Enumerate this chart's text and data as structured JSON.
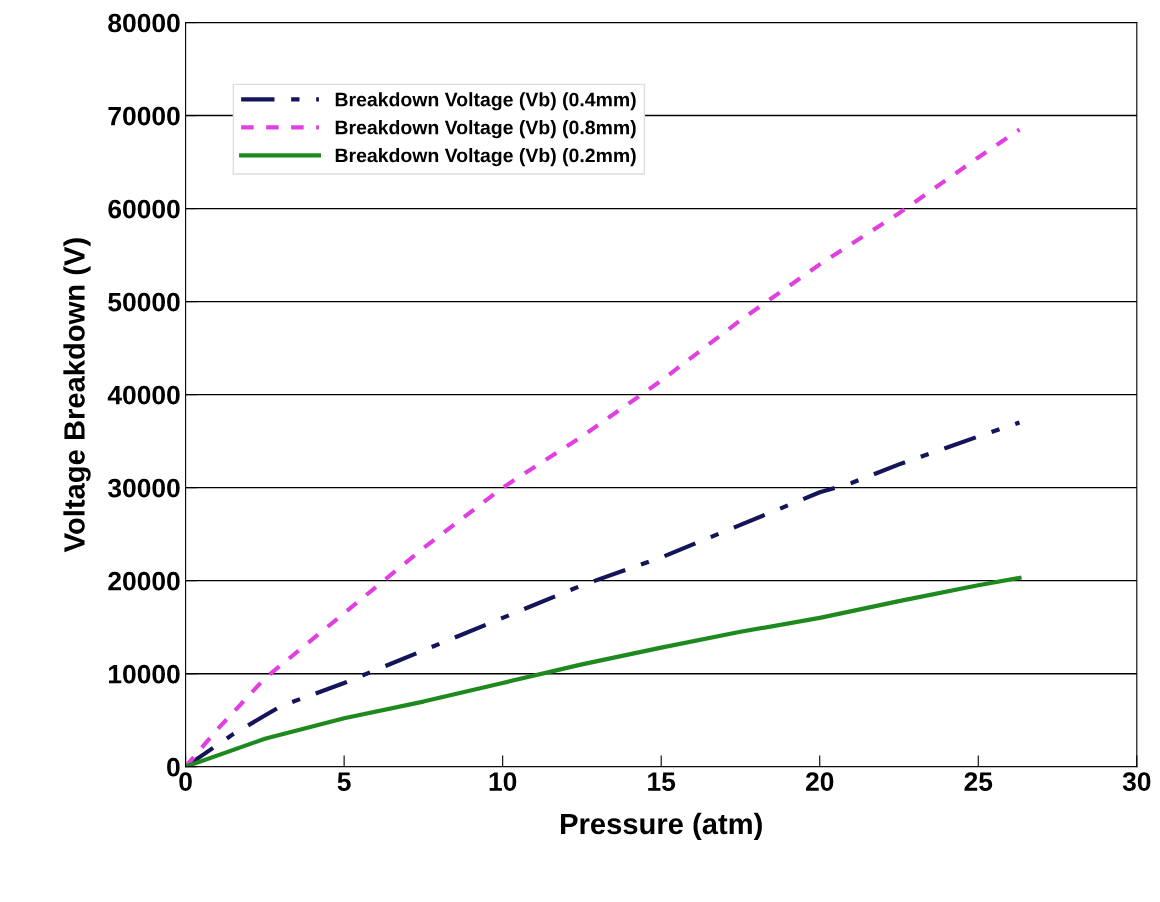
{
  "chart_data": {
    "type": "line",
    "xlabel": "Pressure (atm)",
    "ylabel": "Voltage Breakdown (V)",
    "xlim": [
      0,
      30
    ],
    "xticks": [
      0,
      5,
      10,
      15,
      20,
      25,
      30
    ],
    "ylim": [
      0,
      80000
    ],
    "yticks": [
      0,
      10000,
      20000,
      30000,
      40000,
      50000,
      60000,
      70000,
      80000
    ],
    "grid": "y",
    "legend": "top left",
    "marker": "none",
    "series": [
      {
        "name": "Breakdown Voltage (Vb) (0.4mm)",
        "color": "#14145a",
        "line_style": "dashdot",
        "x": [
          0,
          1.5,
          3,
          5,
          7.5,
          10,
          12.5,
          15,
          17.5,
          20,
          21,
          22.5,
          25,
          26.3
        ],
        "values": [
          0,
          3500,
          6500,
          9000,
          12500,
          16000,
          19500,
          22500,
          26000,
          29500,
          30500,
          32500,
          35500,
          37000
        ]
      },
      {
        "name": "Breakdown Voltage (Vb) (0.8mm)",
        "color": "#e040e0",
        "line_style": "dashed",
        "x": [
          0,
          1,
          2.5,
          5,
          7.5,
          10,
          12.5,
          15,
          17.5,
          20,
          22.5,
          25,
          26.3
        ],
        "values": [
          0,
          4000,
          9500,
          16500,
          23500,
          30000,
          35500,
          41500,
          48000,
          54000,
          59500,
          65500,
          68500
        ]
      },
      {
        "name": "Breakdown Voltage (Vb) (0.2mm)",
        "color": "#1e8a1e",
        "line_style": "solid",
        "x": [
          0,
          2.5,
          5,
          7.5,
          10,
          12.5,
          15,
          17.5,
          20,
          22.5,
          25,
          26.3
        ],
        "values": [
          0,
          3000,
          5200,
          7000,
          9000,
          11000,
          12800,
          14500,
          16000,
          17800,
          19500,
          20300
        ]
      }
    ]
  }
}
